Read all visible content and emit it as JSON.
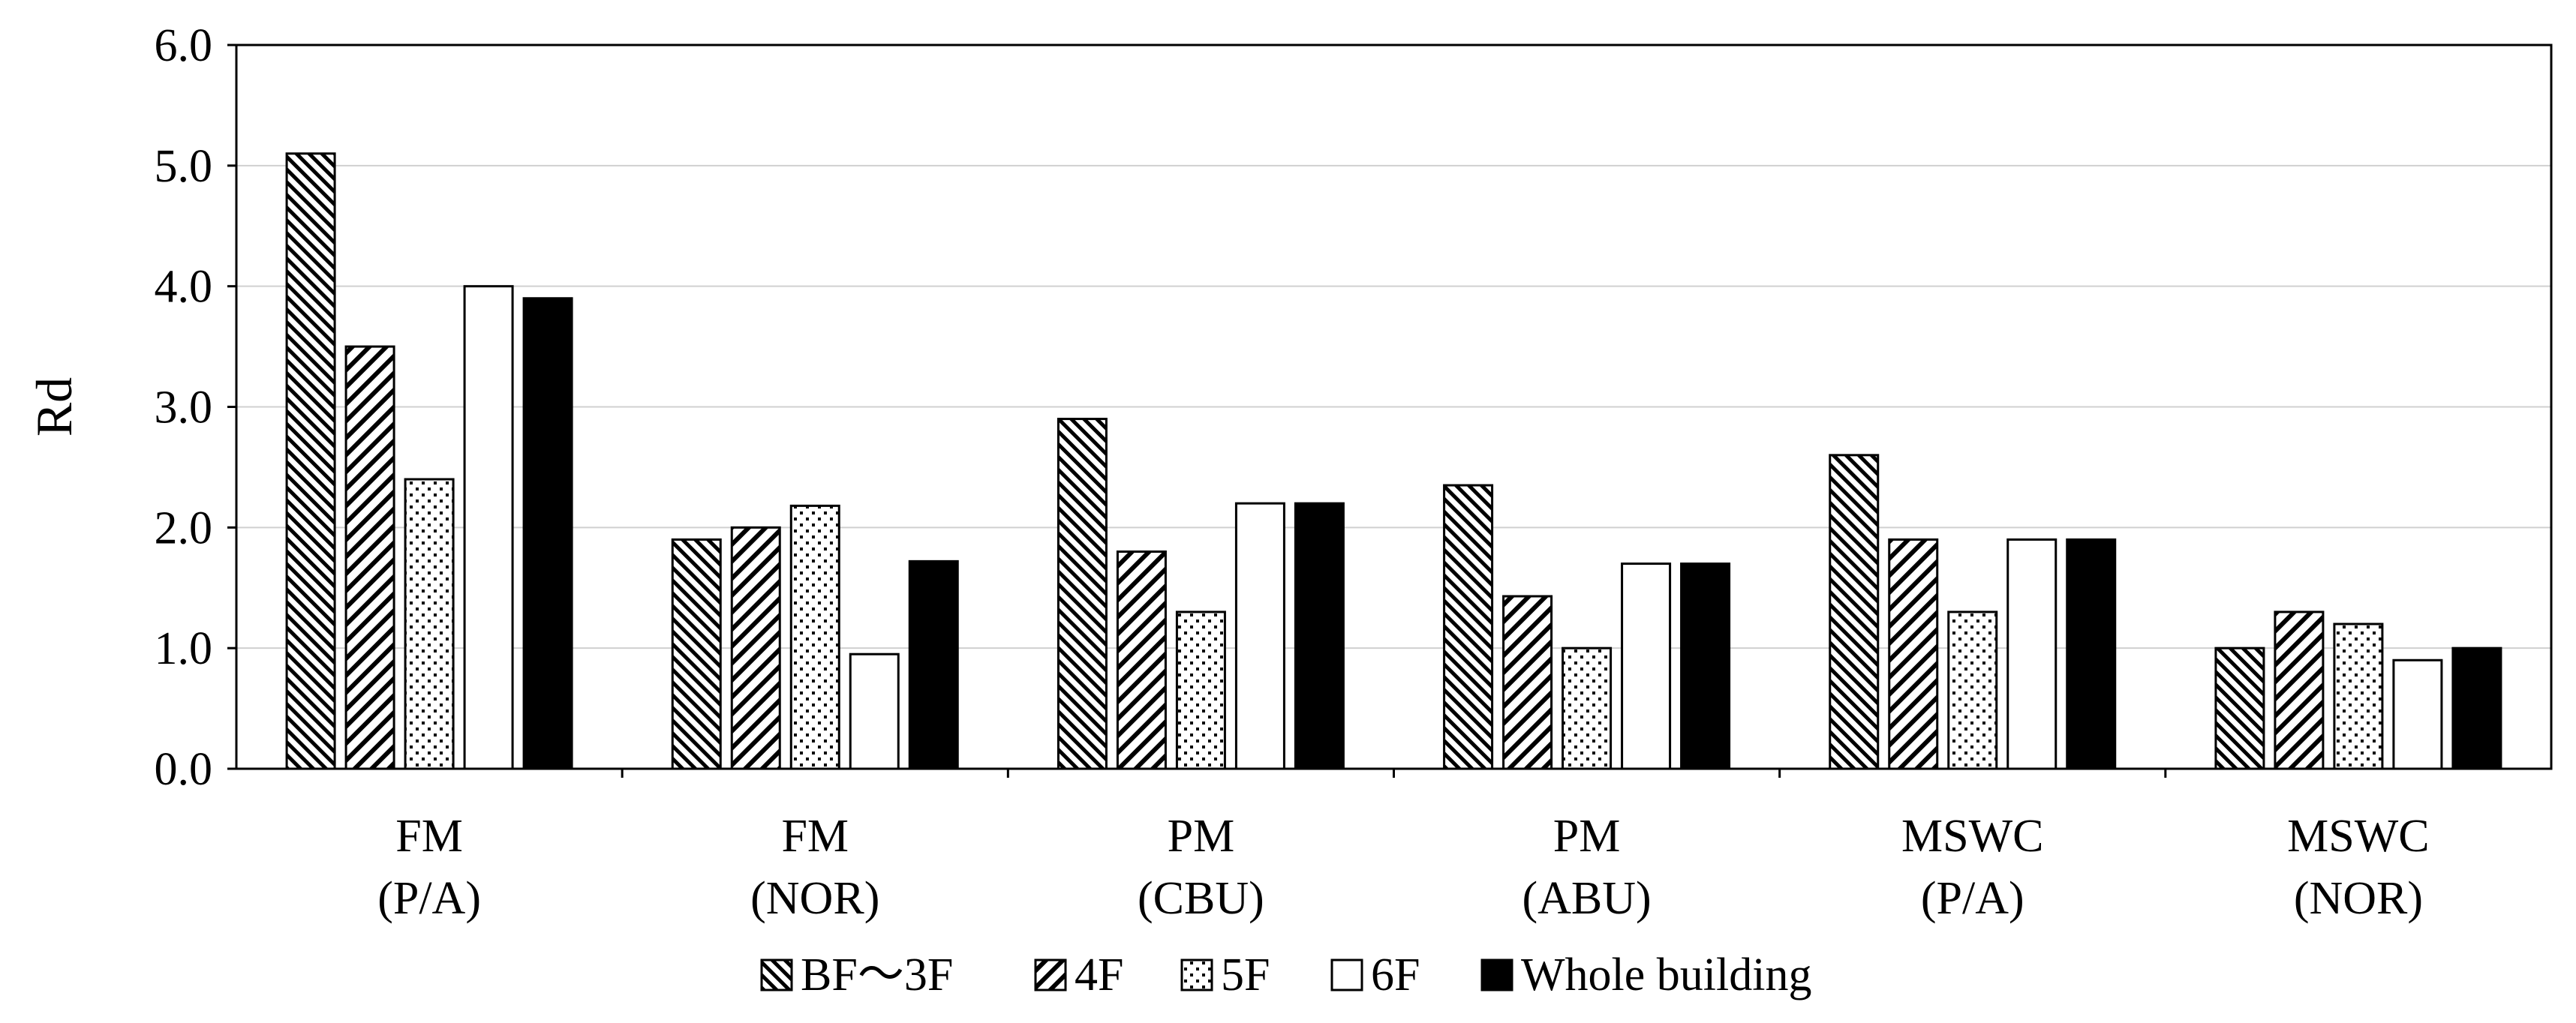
{
  "chart_data": {
    "type": "bar",
    "title": "",
    "xlabel": "",
    "ylabel": "Rd",
    "ylim": [
      0,
      6
    ],
    "yticks": [
      "0.0",
      "1.0",
      "2.0",
      "3.0",
      "4.0",
      "5.0",
      "6.0"
    ],
    "grid": true,
    "legend_position": "bottom",
    "categories": [
      [
        "FM",
        "(P/A)"
      ],
      [
        "FM",
        "(NOR)"
      ],
      [
        "PM",
        "(CBU)"
      ],
      [
        "PM",
        "(ABU)"
      ],
      [
        "MSWC",
        "(P/A)"
      ],
      [
        "MSWC",
        "(NOR)"
      ]
    ],
    "series": [
      {
        "name": "BF～3F",
        "pattern": "diag-dense",
        "values": [
          5.1,
          1.9,
          2.9,
          2.35,
          2.6,
          1.0
        ]
      },
      {
        "name": "4F",
        "pattern": "diag-wide",
        "values": [
          3.5,
          2.0,
          1.8,
          1.43,
          1.9,
          1.3
        ]
      },
      {
        "name": "5F",
        "pattern": "dots",
        "values": [
          2.4,
          2.18,
          1.3,
          1.0,
          1.3,
          1.2
        ]
      },
      {
        "name": "6F",
        "pattern": "white",
        "values": [
          4.0,
          0.95,
          2.2,
          1.7,
          1.9,
          0.9
        ]
      },
      {
        "name": "Whole building",
        "pattern": "black",
        "values": [
          3.9,
          1.72,
          2.2,
          1.7,
          1.9,
          1.0
        ]
      }
    ],
    "colors": {
      "stroke": "#000000",
      "grid": "#d0d0d0",
      "fill_solid": "#000000",
      "fill_empty": "#ffffff"
    }
  }
}
